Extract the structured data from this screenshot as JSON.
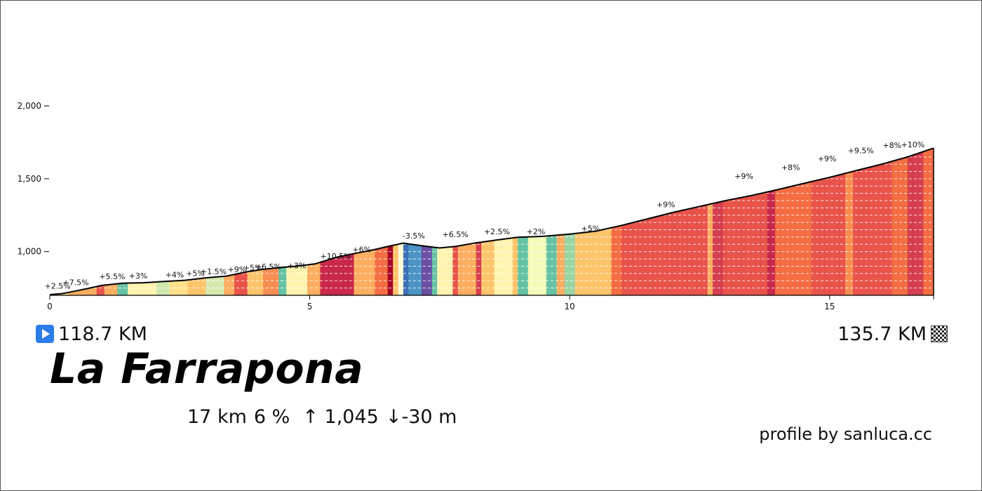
{
  "climb": {
    "name": "La Farrapona",
    "start_km": "118.7 KM",
    "end_km": "135.7 KM",
    "distance": "17 km",
    "avg_grade": "6 %",
    "gain": "↑ 1,045",
    "loss": "↓-30 m",
    "credit": "profile by sanluca.cc"
  },
  "chart_data": {
    "type": "area",
    "x_unit": "km",
    "y_unit": "m",
    "xlim": [
      0,
      17
    ],
    "ylim": [
      700,
      2000
    ],
    "x_ticks": [
      0,
      5,
      10,
      15
    ],
    "x_tick_labels": [
      "0",
      "5",
      "10",
      "15"
    ],
    "y_ticks": [
      1000,
      1500,
      2000
    ],
    "y_tick_labels": [
      "1,000",
      "1,500",
      "2,000"
    ],
    "grid": "horizontal dashed",
    "profile": [
      {
        "x": 0.0,
        "y": 705
      },
      {
        "x": 0.25,
        "y": 712
      },
      {
        "x": 0.5,
        "y": 730
      },
      {
        "x": 0.75,
        "y": 748
      },
      {
        "x": 1.0,
        "y": 768
      },
      {
        "x": 1.4,
        "y": 783
      },
      {
        "x": 1.8,
        "y": 786
      },
      {
        "x": 2.2,
        "y": 795
      },
      {
        "x": 2.6,
        "y": 803
      },
      {
        "x": 3.0,
        "y": 820
      },
      {
        "x": 3.4,
        "y": 832
      },
      {
        "x": 3.8,
        "y": 862
      },
      {
        "x": 4.1,
        "y": 878
      },
      {
        "x": 4.4,
        "y": 890
      },
      {
        "x": 4.7,
        "y": 898
      },
      {
        "x": 5.1,
        "y": 915
      },
      {
        "x": 5.5,
        "y": 960
      },
      {
        "x": 5.9,
        "y": 990
      },
      {
        "x": 6.2,
        "y": 1010
      },
      {
        "x": 6.5,
        "y": 1035
      },
      {
        "x": 6.8,
        "y": 1058
      },
      {
        "x": 7.0,
        "y": 1048
      },
      {
        "x": 7.25,
        "y": 1036
      },
      {
        "x": 7.5,
        "y": 1025
      },
      {
        "x": 7.8,
        "y": 1035
      },
      {
        "x": 8.2,
        "y": 1060
      },
      {
        "x": 8.6,
        "y": 1080
      },
      {
        "x": 9.0,
        "y": 1098
      },
      {
        "x": 9.5,
        "y": 1105
      },
      {
        "x": 10.0,
        "y": 1120
      },
      {
        "x": 10.5,
        "y": 1140
      },
      {
        "x": 11.0,
        "y": 1180
      },
      {
        "x": 11.5,
        "y": 1225
      },
      {
        "x": 12.0,
        "y": 1270
      },
      {
        "x": 12.5,
        "y": 1310
      },
      {
        "x": 13.0,
        "y": 1350
      },
      {
        "x": 13.5,
        "y": 1385
      },
      {
        "x": 14.0,
        "y": 1425
      },
      {
        "x": 14.5,
        "y": 1468
      },
      {
        "x": 15.0,
        "y": 1510
      },
      {
        "x": 15.5,
        "y": 1555
      },
      {
        "x": 16.0,
        "y": 1600
      },
      {
        "x": 16.5,
        "y": 1650
      },
      {
        "x": 17.0,
        "y": 1710
      }
    ],
    "segments": [
      {
        "x0": 0.0,
        "x1": 0.35,
        "color": "#ffe08a",
        "label": "+2.5%",
        "label_x": 0.15,
        "label_y": 745
      },
      {
        "x0": 0.35,
        "x1": 0.9,
        "color": "#fdae61",
        "label": "+7.5%",
        "label_x": 0.5,
        "label_y": 770
      },
      {
        "x0": 0.9,
        "x1": 1.05,
        "color": "#e8534a",
        "label": "",
        "label_x": null,
        "label_y": null
      },
      {
        "x0": 1.05,
        "x1": 1.3,
        "color": "#fdae61",
        "label": "+5.5%",
        "label_x": 1.2,
        "label_y": 810
      },
      {
        "x0": 1.3,
        "x1": 1.5,
        "color": "#66c2a5",
        "label": "",
        "label_x": null,
        "label_y": null
      },
      {
        "x0": 1.5,
        "x1": 2.05,
        "color": "#fff3b0",
        "label": "+3%",
        "label_x": 1.7,
        "label_y": 815
      },
      {
        "x0": 2.05,
        "x1": 2.3,
        "color": "#cfe8b0",
        "label": "",
        "label_x": null,
        "label_y": null
      },
      {
        "x0": 2.3,
        "x1": 2.65,
        "color": "#ffe08a",
        "label": "+4%",
        "label_x": 2.4,
        "label_y": 822
      },
      {
        "x0": 2.65,
        "x1": 3.0,
        "color": "#fdc46a",
        "label": "+5%",
        "label_x": 2.8,
        "label_y": 832
      },
      {
        "x0": 3.0,
        "x1": 3.35,
        "color": "#d6eab0",
        "label": "+1.5%",
        "label_x": 3.15,
        "label_y": 845
      },
      {
        "x0": 3.35,
        "x1": 3.55,
        "color": "#fdae61",
        "label": "",
        "label_x": null,
        "label_y": null
      },
      {
        "x0": 3.55,
        "x1": 3.8,
        "color": "#e8534a",
        "label": "+9%",
        "label_x": 3.6,
        "label_y": 858
      },
      {
        "x0": 3.8,
        "x1": 4.1,
        "color": "#fdc46a",
        "label": "+5%",
        "label_x": 3.9,
        "label_y": 870
      },
      {
        "x0": 4.1,
        "x1": 4.4,
        "color": "#f98e52",
        "label": "+6.5%",
        "label_x": 4.2,
        "label_y": 878
      },
      {
        "x0": 4.4,
        "x1": 4.55,
        "color": "#66c2a5",
        "label": "",
        "label_x": null,
        "label_y": null
      },
      {
        "x0": 4.55,
        "x1": 4.95,
        "color": "#fff3b0",
        "label": "+3%",
        "label_x": 4.75,
        "label_y": 885
      },
      {
        "x0": 4.95,
        "x1": 5.2,
        "color": "#fdae61",
        "label": "",
        "label_x": null,
        "label_y": null
      },
      {
        "x0": 5.2,
        "x1": 5.85,
        "color": "#c9284a",
        "label": "+10.5%",
        "label_x": 5.5,
        "label_y": 950
      },
      {
        "x0": 5.85,
        "x1": 6.25,
        "color": "#fdae61",
        "label": "+6%",
        "label_x": 6.0,
        "label_y": 995
      },
      {
        "x0": 6.25,
        "x1": 6.5,
        "color": "#f46d43",
        "label": "",
        "label_x": null,
        "label_y": null
      },
      {
        "x0": 6.5,
        "x1": 6.6,
        "color": "#a50026",
        "label": "",
        "label_x": null,
        "label_y": null
      },
      {
        "x0": 6.6,
        "x1": 6.7,
        "color": "#fdc46a",
        "label": "",
        "label_x": null,
        "label_y": null
      },
      {
        "x0": 6.7,
        "x1": 6.8,
        "color": "#fff9d6",
        "label": "",
        "label_x": null,
        "label_y": null
      },
      {
        "x0": 6.8,
        "x1": 6.9,
        "color": "#3b6fb6",
        "label": "",
        "label_x": null,
        "label_y": null
      },
      {
        "x0": 6.9,
        "x1": 7.15,
        "color": "#4b94c4",
        "label": "-3.5%",
        "label_x": 7.0,
        "label_y": 1090
      },
      {
        "x0": 7.15,
        "x1": 7.35,
        "color": "#6a4fa3",
        "label": "",
        "label_x": null,
        "label_y": null
      },
      {
        "x0": 7.35,
        "x1": 7.45,
        "color": "#66c2a5",
        "label": "",
        "label_x": null,
        "label_y": null
      },
      {
        "x0": 7.45,
        "x1": 7.75,
        "color": "#fff3b0",
        "label": "",
        "label_x": null,
        "label_y": null
      },
      {
        "x0": 7.75,
        "x1": 7.85,
        "color": "#e8534a",
        "label": "",
        "label_x": null,
        "label_y": null
      },
      {
        "x0": 7.85,
        "x1": 8.2,
        "color": "#fdae61",
        "label": "+6.5%",
        "label_x": 7.8,
        "label_y": 1100
      },
      {
        "x0": 8.2,
        "x1": 8.3,
        "color": "#d53e4f",
        "label": "",
        "label_x": null,
        "label_y": null
      },
      {
        "x0": 8.3,
        "x1": 8.55,
        "color": "#fdc46a",
        "label": "",
        "label_x": null,
        "label_y": null
      },
      {
        "x0": 8.55,
        "x1": 8.9,
        "color": "#fff3b0",
        "label": "+2.5%",
        "label_x": 8.6,
        "label_y": 1118
      },
      {
        "x0": 8.9,
        "x1": 9.0,
        "color": "#fdc46a",
        "label": "",
        "label_x": null,
        "label_y": null
      },
      {
        "x0": 9.0,
        "x1": 9.2,
        "color": "#66c2a5",
        "label": "",
        "label_x": null,
        "label_y": null
      },
      {
        "x0": 9.2,
        "x1": 9.55,
        "color": "#f4fab8",
        "label": "+2%",
        "label_x": 9.35,
        "label_y": 1120
      },
      {
        "x0": 9.55,
        "x1": 9.75,
        "color": "#66c2a5",
        "label": "",
        "label_x": null,
        "label_y": null
      },
      {
        "x0": 9.75,
        "x1": 9.9,
        "color": "#fdae61",
        "label": "",
        "label_x": null,
        "label_y": null
      },
      {
        "x0": 9.9,
        "x1": 10.1,
        "color": "#99d5a4",
        "label": "",
        "label_x": null,
        "label_y": null
      },
      {
        "x0": 10.1,
        "x1": 10.8,
        "color": "#fdc46a",
        "label": "+5%",
        "label_x": 10.4,
        "label_y": 1140
      },
      {
        "x0": 10.8,
        "x1": 11.0,
        "color": "#f46d43",
        "label": "",
        "label_x": null,
        "label_y": null
      },
      {
        "x0": 11.0,
        "x1": 12.65,
        "color": "#e8534a",
        "label": "+9%",
        "label_x": 11.85,
        "label_y": 1305
      },
      {
        "x0": 12.65,
        "x1": 12.75,
        "color": "#fdae61",
        "label": "",
        "label_x": null,
        "label_y": null
      },
      {
        "x0": 12.75,
        "x1": 12.95,
        "color": "#d53e4f",
        "label": "",
        "label_x": null,
        "label_y": null
      },
      {
        "x0": 12.95,
        "x1": 13.8,
        "color": "#e8534a",
        "label": "+9%",
        "label_x": 13.35,
        "label_y": 1500
      },
      {
        "x0": 13.8,
        "x1": 13.95,
        "color": "#c9284a",
        "label": "",
        "label_x": null,
        "label_y": null
      },
      {
        "x0": 13.95,
        "x1": 14.65,
        "color": "#f46d43",
        "label": "+8%",
        "label_x": 14.25,
        "label_y": 1560
      },
      {
        "x0": 14.65,
        "x1": 15.3,
        "color": "#e8534a",
        "label": "+9%",
        "label_x": 14.95,
        "label_y": 1620
      },
      {
        "x0": 15.3,
        "x1": 15.45,
        "color": "#f98e52",
        "label": "",
        "label_x": null,
        "label_y": null
      },
      {
        "x0": 15.45,
        "x1": 16.2,
        "color": "#e8534a",
        "label": "+9.5%",
        "label_x": 15.6,
        "label_y": 1675
      },
      {
        "x0": 16.2,
        "x1": 16.5,
        "color": "#f46d43",
        "label": "+8%",
        "label_x": 16.2,
        "label_y": 1710
      },
      {
        "x0": 16.5,
        "x1": 16.8,
        "color": "#d53e4f",
        "label": "+10%",
        "label_x": 16.6,
        "label_y": 1715
      },
      {
        "x0": 16.8,
        "x1": 17.0,
        "color": "#f46d43",
        "label": "",
        "label_x": null,
        "label_y": null
      }
    ]
  }
}
